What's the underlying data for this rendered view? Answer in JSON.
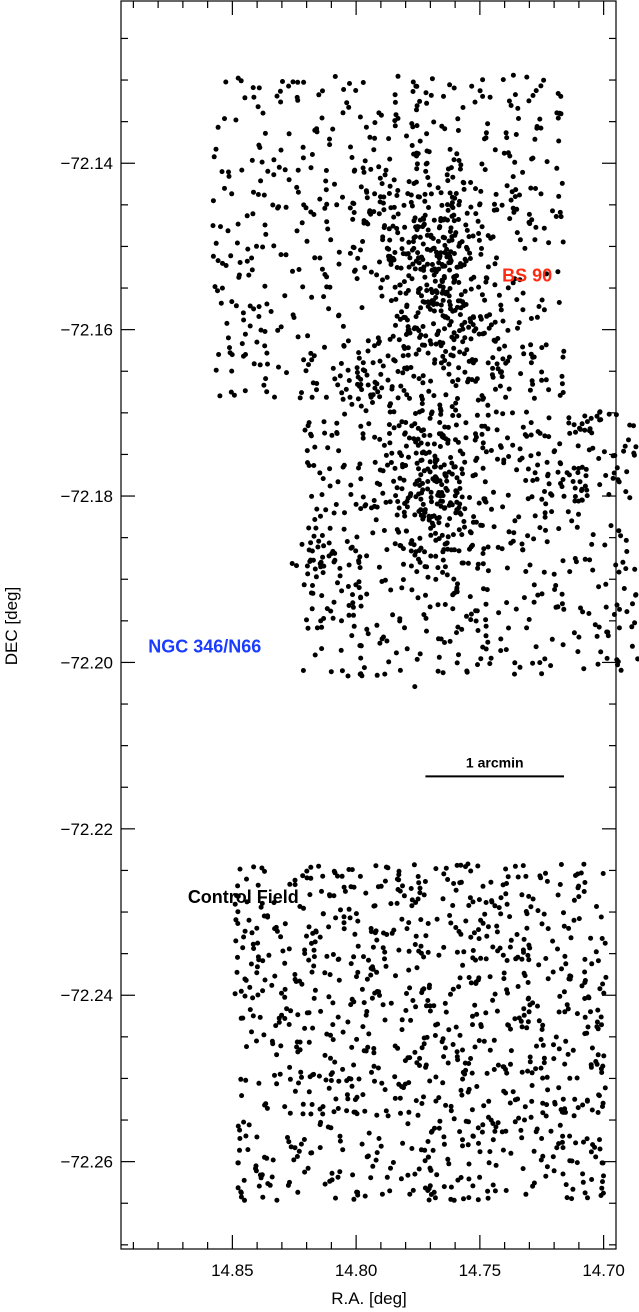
{
  "chart_data": {
    "type": "scatter",
    "title": "",
    "xlabel": "R.A. [deg]",
    "ylabel": "DEC [deg]",
    "xlim": [
      14.895,
      14.695
    ],
    "ylim": [
      -72.2705,
      -72.1205
    ],
    "x_axis_reversed": true,
    "grid": false,
    "x_ticks": [
      14.85,
      14.8,
      14.75,
      14.7
    ],
    "x_tick_labels": [
      "14.85",
      "14.80",
      "14.75",
      "14.70"
    ],
    "x_minor_step": 0.01,
    "y_ticks": [
      -72.14,
      -72.16,
      -72.18,
      -72.2,
      -72.22,
      -72.24,
      -72.26
    ],
    "y_tick_labels": [
      "−72.14",
      "−72.16",
      "−72.18",
      "−72.20",
      "−72.22",
      "−72.24",
      "−72.26"
    ],
    "y_minor_step": 0.005,
    "marker_color": "#000000",
    "annotations": [
      {
        "text": "BS 90",
        "x": 14.741,
        "y": -72.1542,
        "color": "#ff2a12"
      },
      {
        "text": "NGC 346/N66",
        "x": 14.884,
        "y": -72.1988,
        "color": "#1a3cff"
      },
      {
        "text": "Control Field",
        "x": 14.868,
        "y": -72.2289,
        "color": "#000000"
      }
    ],
    "scale_bar": {
      "label": "1 arcmin",
      "x_start": 14.772,
      "x_end": 14.716,
      "y": -72.2137
    },
    "regions": [
      {
        "name": "",
        "x": [
          14.716,
          14.858
        ],
        "y": [
          -72.1684,
          -72.1294
        ],
        "n": 600,
        "seed": 11
      },
      {
        "name": "",
        "x": [
          14.686,
          14.822
        ],
        "y": [
          -72.2017,
          -72.1697
        ],
        "n": 480,
        "seed": 23
      },
      {
        "name": "",
        "x": [
          14.702,
          14.735
        ],
        "y": [
          -72.181,
          -72.17
        ],
        "n": 40,
        "seed": 29
      },
      {
        "name": "",
        "x": [
          14.699,
          14.849
        ],
        "y": [
          -72.2648,
          -72.2242
        ],
        "n": 960,
        "seed": 37
      }
    ],
    "clusters": [
      {
        "name": "",
        "cx": 14.767,
        "cy": -72.1538,
        "sx": 0.012,
        "sy": 0.0065,
        "n": 300,
        "seed": 41
      },
      {
        "name": "",
        "cx": 14.768,
        "cy": -72.1778,
        "sx": 0.013,
        "sy": 0.0065,
        "n": 260,
        "seed": 43
      },
      {
        "name": "",
        "cx": 14.796,
        "cy": -72.1668,
        "sx": 0.004,
        "sy": 0.002,
        "n": 30,
        "seed": 47
      },
      {
        "name": "",
        "cx": 14.812,
        "cy": -72.187,
        "sx": 0.006,
        "sy": 0.0022,
        "n": 35,
        "seed": 53
      },
      {
        "name": "",
        "cx": 14.791,
        "cy": -72.1438,
        "sx": 0.006,
        "sy": 0.003,
        "n": 25,
        "seed": 59
      }
    ]
  }
}
